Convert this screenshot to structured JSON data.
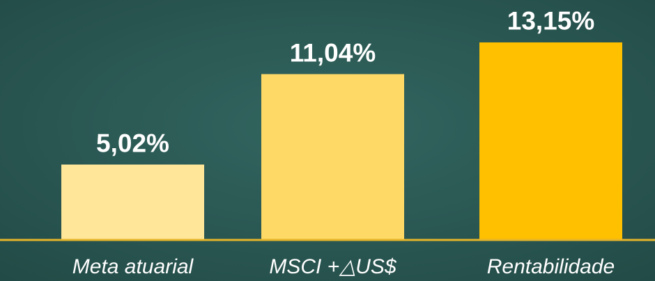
{
  "chart_data": {
    "type": "bar",
    "categories": [
      "Meta atuarial",
      "MSCI +△US$",
      "Rentabilidade"
    ],
    "values": [
      5.02,
      11.04,
      13.15
    ],
    "value_labels": [
      "5,02%",
      "11,04%",
      "13,15%"
    ],
    "colors": [
      "#FFE699",
      "#FFD966",
      "#FFC000"
    ]
  }
}
